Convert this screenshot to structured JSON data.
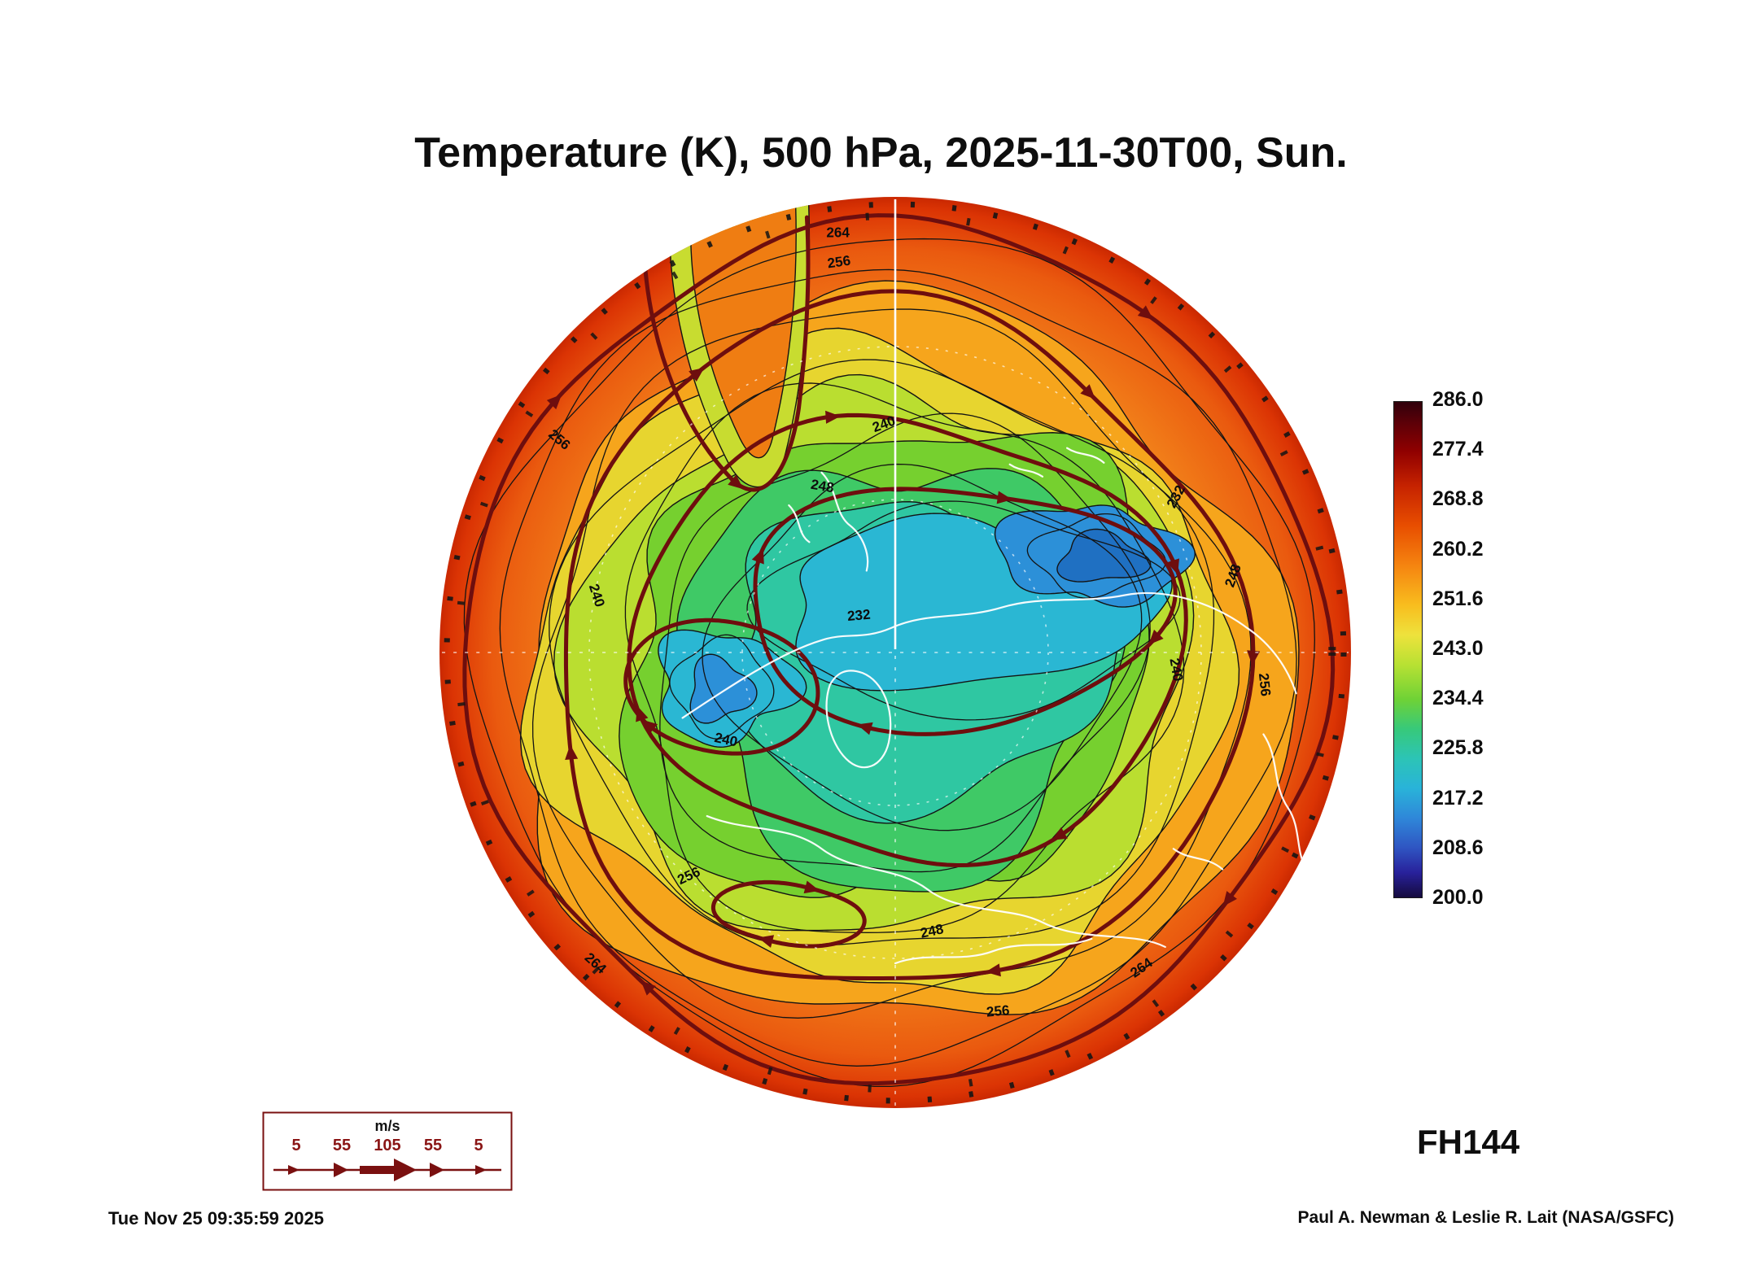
{
  "title": "Temperature (K), 500 hPa, 2025-11-30T00, Sun.",
  "forecast_hour_label": "FH144",
  "footer": {
    "timestamp": "Tue Nov 25 09:35:59 2025",
    "credit": "Paul A. Newman & Leslie R. Lait (NASA/GSFC)"
  },
  "colorbar": {
    "ticks": [
      "286.0",
      "277.4",
      "268.8",
      "260.2",
      "251.6",
      "243.0",
      "234.4",
      "225.8",
      "217.2",
      "208.6",
      "200.0"
    ]
  },
  "wind_legend": {
    "unit": "m/s",
    "ticks": [
      "5",
      "55",
      "105",
      "55",
      "5"
    ]
  },
  "map": {
    "contour_labels": [
      "264",
      "256",
      "240",
      "248",
      "232",
      "256",
      "240",
      "232",
      "240",
      "256",
      "240",
      "256",
      "248",
      "256",
      "264",
      "264",
      "248"
    ]
  },
  "chart_data": {
    "type": "heatmap",
    "title": "Temperature (K), 500 hPa, 2025-11-30T00, Sun.",
    "variable": "Temperature",
    "units": "K",
    "pressure_level_hPa": 500,
    "valid_time": "2025-11-30T00",
    "day_of_week": "Sun.",
    "forecast_hour": 144,
    "projection": "Northern Hemisphere polar stereographic disk",
    "colorbar": {
      "min": 200.0,
      "max": 286.0,
      "orientation": "vertical",
      "position": "right",
      "ticks": [
        286.0,
        277.4,
        268.8,
        260.2,
        251.6,
        243.0,
        234.4,
        225.8,
        217.2,
        208.6,
        200.0
      ]
    },
    "labeled_contour_levels_K": [
      232,
      240,
      248,
      256,
      264
    ],
    "field_description": "Warm air (red/orange, ~260-286 K) around the disk rim, yellow-green mid ranges, cold core regions (cyan/blue, ~215-230 K) over the pole with two minima: one right-of-center and one left-of-center",
    "overlays": [
      "black temperature contour lines with inline labels",
      "dark-red wind streamlines with arrowheads",
      "white coastlines",
      "white dashed latitude/longitude graticule"
    ],
    "wind_scale_m_per_s": [
      5,
      55,
      105,
      55,
      5
    ],
    "generated": "Tue Nov 25 09:35:59 2025",
    "credit": "Paul A. Newman & Leslie R. Lait (NASA/GSFC)"
  }
}
